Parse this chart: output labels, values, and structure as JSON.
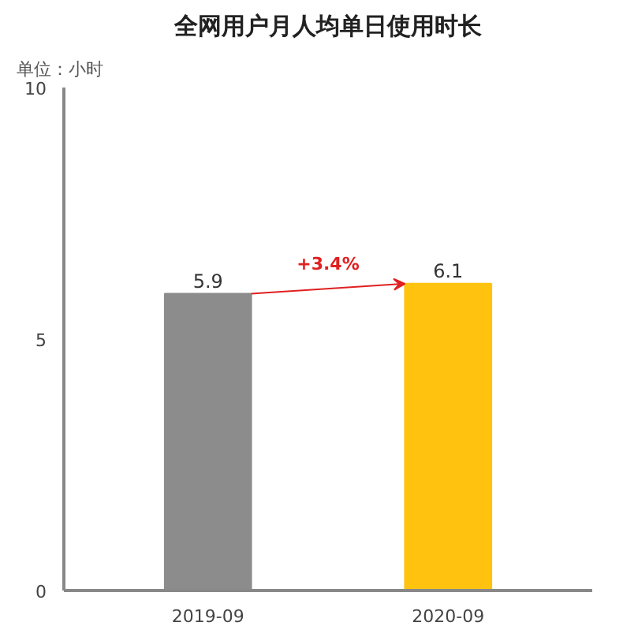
{
  "chart_data": {
    "type": "bar",
    "title": "全网用户月人均单日使用时长",
    "subtitle": "单位：小时",
    "categories": [
      "2019-09",
      "2020-09"
    ],
    "values": [
      5.9,
      6.1
    ],
    "colors": [
      "#8c8c8c",
      "#ffc20e"
    ],
    "data_labels": true,
    "annotations": [
      "+3.4%"
    ],
    "ylim": [
      0,
      10
    ],
    "yticks": [
      0,
      5,
      10
    ],
    "grid": false
  }
}
